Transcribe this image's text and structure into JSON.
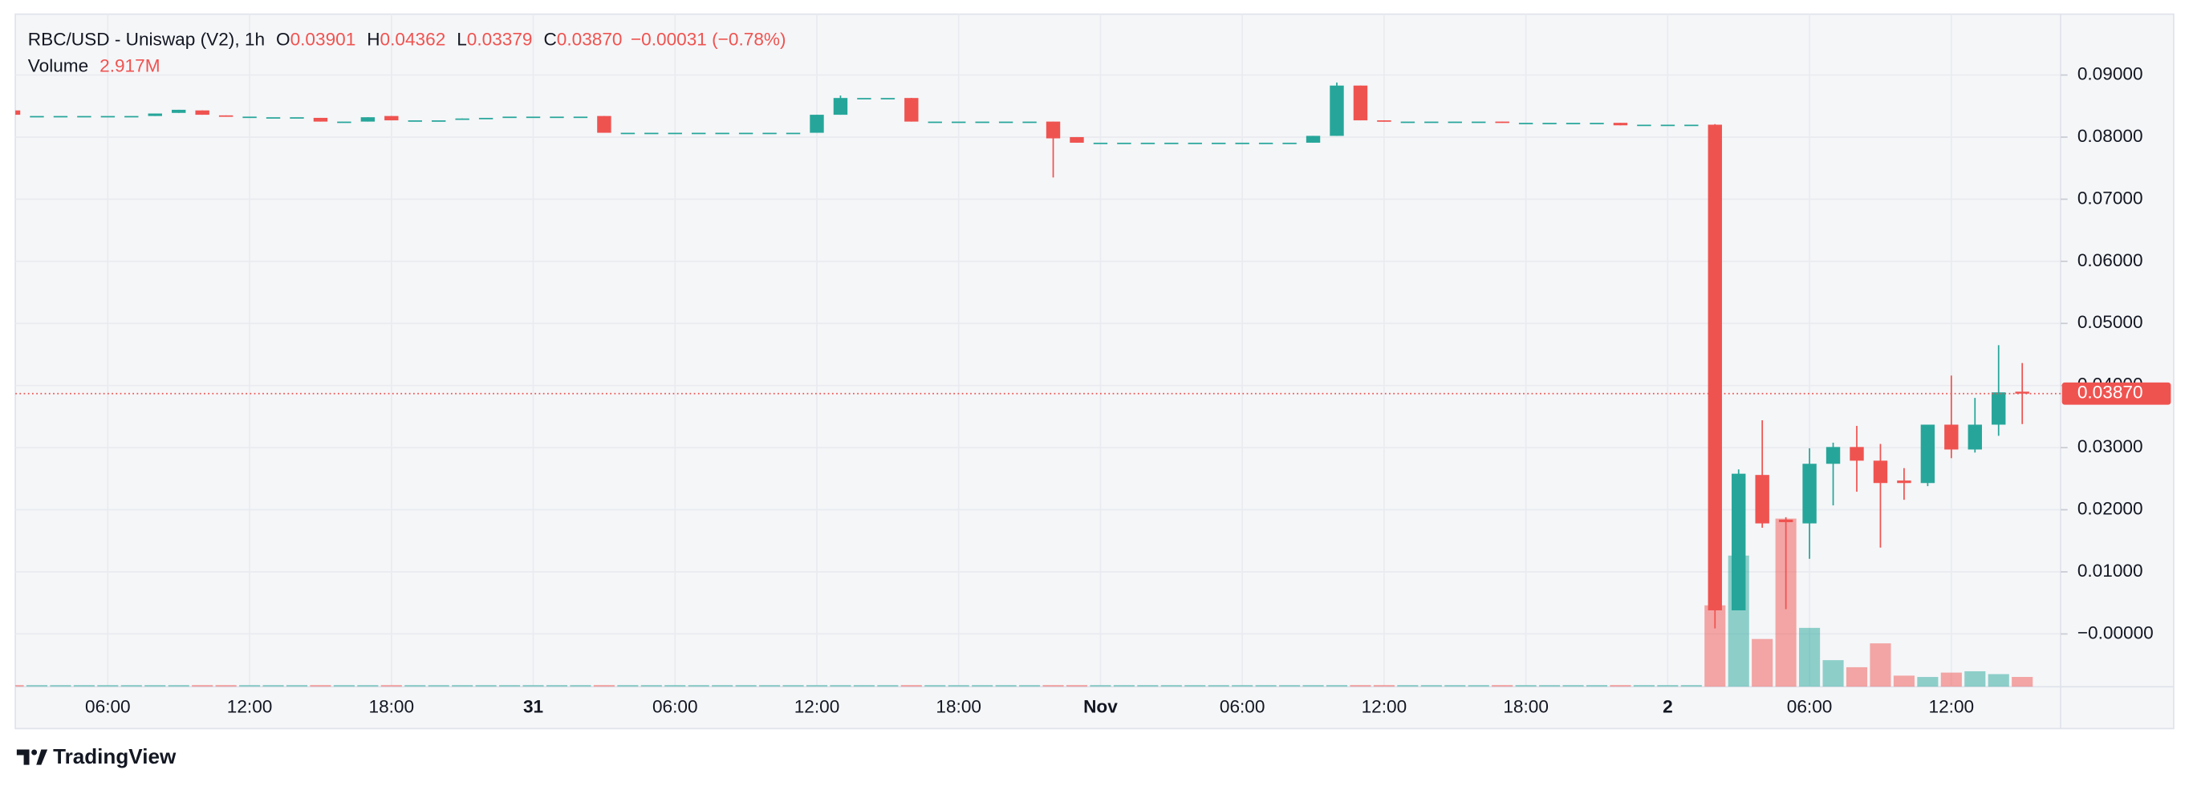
{
  "chart_data": {
    "type": "candlestick",
    "title": "RBC/USD - Uniswap (V2), 1h",
    "ohlc_legend": [
      {
        "label": "O",
        "value": "0.03901"
      },
      {
        "label": "H",
        "value": "0.04362"
      },
      {
        "label": "L",
        "value": "0.03379"
      },
      {
        "label": "C",
        "value": "0.03870"
      }
    ],
    "change": "−0.00031 (−0.78%)",
    "volume_legend": {
      "label": "Volume",
      "value": "2.917M"
    },
    "last_price": {
      "value": 0.0387,
      "label": "0.03870"
    },
    "up_color": "#26a69a",
    "down_color": "#ef5350",
    "grid": true,
    "ylim": [
      -0.0085,
      0.0998
    ],
    "yticks": [
      {
        "value": 0.09,
        "label": "0.09000"
      },
      {
        "value": 0.08,
        "label": "0.08000"
      },
      {
        "value": 0.07,
        "label": "0.07000"
      },
      {
        "value": 0.06,
        "label": "0.06000"
      },
      {
        "value": 0.05,
        "label": "0.05000"
      },
      {
        "value": 0.04,
        "label": "0.04000"
      },
      {
        "value": 0.03,
        "label": "0.03000"
      },
      {
        "value": 0.02,
        "label": "0.02000"
      },
      {
        "value": 0.01,
        "label": "0.01000"
      },
      {
        "value": 0,
        "label": "−0.00000"
      }
    ],
    "volume_ylim": [
      0,
      200
    ],
    "categories": [
      null,
      null,
      null,
      null,
      "06:00",
      null,
      null,
      null,
      null,
      null,
      "12:00",
      null,
      null,
      null,
      null,
      null,
      "18:00",
      null,
      null,
      null,
      null,
      null,
      "31",
      null,
      null,
      null,
      null,
      null,
      "06:00",
      null,
      null,
      null,
      null,
      null,
      "12:00",
      null,
      null,
      null,
      null,
      null,
      "18:00",
      null,
      null,
      null,
      null,
      null,
      "Nov",
      null,
      null,
      null,
      null,
      null,
      "06:00",
      null,
      null,
      null,
      null,
      null,
      "12:00",
      null,
      null,
      null,
      null,
      null,
      "18:00",
      null,
      null,
      null,
      null,
      null,
      "2",
      null,
      null,
      null,
      null,
      null,
      "06:00",
      null,
      null,
      null,
      null,
      null,
      "12:00",
      null,
      null,
      null
    ],
    "open": [
      0.0843,
      0.0834,
      0.0834,
      0.0834,
      0.0834,
      0.0834,
      0.0834,
      0.0839,
      0.0843,
      0.0835,
      0.0833,
      0.0832,
      0.0832,
      0.0831,
      0.0825,
      0.0825,
      0.0834,
      0.0827,
      0.0827,
      0.0828,
      0.0831,
      0.0833,
      0.0833,
      0.0833,
      0.0833,
      0.0834,
      0.0807,
      0.0807,
      0.0807,
      0.0807,
      0.0807,
      0.0807,
      0.0807,
      0.0807,
      0.0807,
      0.0836,
      0.0863,
      0.0863,
      0.0863,
      0.0825,
      0.0825,
      0.0825,
      0.0825,
      0.0825,
      0.0825,
      0.08,
      0.0791,
      0.0791,
      0.0791,
      0.0791,
      0.0791,
      0.0791,
      0.0791,
      0.0791,
      0.0791,
      0.0791,
      0.0802,
      0.0883,
      0.0827,
      0.0825,
      0.0825,
      0.0825,
      0.0825,
      0.0825,
      0.0823,
      0.0823,
      0.0823,
      0.0823,
      0.0823,
      0.082,
      0.082,
      0.082,
      0.082,
      0.0038,
      0.0256,
      0.0184,
      0.0178,
      0.0274,
      0.0301,
      0.0279,
      0.0247,
      0.0243,
      0.0337,
      0.0297,
      0.0337,
      0.03901
    ],
    "high": [
      0.0843,
      0.0834,
      0.0834,
      0.0834,
      0.0834,
      0.0834,
      0.0838,
      0.0844,
      0.0843,
      0.0835,
      0.0833,
      0.0832,
      0.0832,
      0.0831,
      0.0825,
      0.0832,
      0.0834,
      0.0827,
      0.0827,
      0.083,
      0.0831,
      0.0833,
      0.0833,
      0.0833,
      0.0833,
      0.0834,
      0.0807,
      0.0807,
      0.0807,
      0.0807,
      0.0807,
      0.0807,
      0.0807,
      0.0807,
      0.0836,
      0.0867,
      0.0863,
      0.0863,
      0.0863,
      0.0825,
      0.0825,
      0.0825,
      0.0825,
      0.0825,
      0.0825,
      0.08,
      0.0791,
      0.0791,
      0.0791,
      0.0791,
      0.0791,
      0.0791,
      0.0791,
      0.0791,
      0.0791,
      0.0802,
      0.0888,
      0.0883,
      0.0827,
      0.0825,
      0.0825,
      0.0825,
      0.0825,
      0.0825,
      0.0823,
      0.0823,
      0.0823,
      0.0823,
      0.0823,
      0.082,
      0.082,
      0.082,
      0.0821,
      0.0265,
      0.0344,
      0.0188,
      0.0299,
      0.0308,
      0.0335,
      0.0306,
      0.0267,
      0.0337,
      0.0416,
      0.038,
      0.0465,
      0.04362
    ],
    "low": [
      0.0836,
      0.0834,
      0.0834,
      0.0834,
      0.0834,
      0.0834,
      0.0834,
      0.0839,
      0.0836,
      0.0834,
      0.0833,
      0.0832,
      0.0832,
      0.0825,
      0.0825,
      0.0825,
      0.0827,
      0.0827,
      0.0827,
      0.0828,
      0.0831,
      0.0833,
      0.0833,
      0.0833,
      0.0833,
      0.0807,
      0.0807,
      0.0807,
      0.0807,
      0.0807,
      0.0807,
      0.0807,
      0.0807,
      0.0807,
      0.0807,
      0.0836,
      0.0863,
      0.0863,
      0.0825,
      0.0825,
      0.0825,
      0.0825,
      0.0825,
      0.0825,
      0.0735,
      0.0791,
      0.0791,
      0.0791,
      0.0791,
      0.0791,
      0.0791,
      0.0791,
      0.0791,
      0.0791,
      0.0791,
      0.0791,
      0.0802,
      0.0827,
      0.0825,
      0.0825,
      0.0825,
      0.0825,
      0.0825,
      0.0823,
      0.0823,
      0.0823,
      0.0823,
      0.0823,
      0.0819,
      0.082,
      0.082,
      0.082,
      0.0009,
      0.0038,
      0.0171,
      0.004,
      0.0121,
      0.0207,
      0.0229,
      0.0139,
      0.0216,
      0.0238,
      0.0283,
      0.0292,
      0.0319,
      0.03379
    ],
    "close": [
      0.0836,
      0.0834,
      0.0834,
      0.0834,
      0.0834,
      0.0834,
      0.0838,
      0.0844,
      0.0836,
      0.0834,
      0.0833,
      0.0832,
      0.0832,
      0.0825,
      0.0825,
      0.0832,
      0.0827,
      0.0827,
      0.0827,
      0.083,
      0.0831,
      0.0833,
      0.0833,
      0.0833,
      0.0833,
      0.0807,
      0.0807,
      0.0807,
      0.0807,
      0.0807,
      0.0807,
      0.0807,
      0.0807,
      0.0807,
      0.0836,
      0.0863,
      0.0863,
      0.0863,
      0.0825,
      0.0825,
      0.0825,
      0.0825,
      0.0825,
      0.0825,
      0.0798,
      0.0791,
      0.0791,
      0.0791,
      0.0791,
      0.0791,
      0.0791,
      0.0791,
      0.0791,
      0.0791,
      0.0791,
      0.0802,
      0.0883,
      0.0827,
      0.0825,
      0.0825,
      0.0825,
      0.0825,
      0.0825,
      0.0823,
      0.0823,
      0.0823,
      0.0823,
      0.0823,
      0.0819,
      0.082,
      0.082,
      0.082,
      0.0038,
      0.0258,
      0.0178,
      0.018,
      0.0274,
      0.0301,
      0.0279,
      0.0243,
      0.0243,
      0.0337,
      0.0297,
      0.0337,
      0.0389,
      0.0387
    ],
    "volume": [
      0.5,
      0.5,
      0.5,
      0.5,
      0.5,
      0.5,
      0.5,
      0.5,
      0.5,
      0.5,
      0.5,
      0.5,
      0.5,
      0.5,
      0.5,
      0.5,
      0.5,
      0.5,
      0.5,
      0.5,
      0.5,
      0.5,
      0.5,
      0.5,
      0.5,
      0.5,
      0.5,
      0.5,
      0.5,
      0.5,
      0.5,
      0.5,
      0.5,
      0.5,
      0.5,
      0.5,
      0.5,
      0.5,
      0.5,
      0.5,
      0.5,
      0.5,
      0.5,
      0.5,
      0.5,
      0.5,
      0.5,
      0.5,
      0.5,
      0.5,
      0.5,
      0.5,
      0.5,
      0.5,
      0.5,
      0.5,
      0.5,
      0.5,
      0.5,
      0.5,
      0.5,
      0.5,
      0.5,
      0.5,
      0.5,
      0.5,
      0.5,
      0.5,
      0.5,
      0.5,
      0.5,
      0.5,
      24.2,
      39,
      14.2,
      50,
      17.5,
      7.9,
      5.8,
      12.9,
      3.3,
      2.9,
      4.2,
      4.6,
      3.75,
      2.917
    ],
    "branding": "TradingView"
  }
}
